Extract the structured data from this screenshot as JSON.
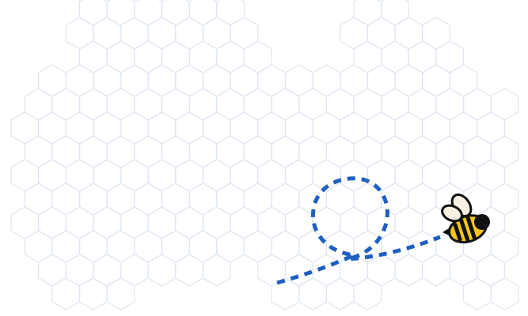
{
  "scene": {
    "background_color": "#ffffff",
    "hex_stroke_color": "#dde6f1",
    "path_color": "#1f5fbf",
    "bee": {
      "icon": "bee-icon",
      "body_color": "#f5c518",
      "stripe_color": "#111111",
      "wing_color": "#f6f1e2",
      "outline_color": "#111111"
    }
  }
}
